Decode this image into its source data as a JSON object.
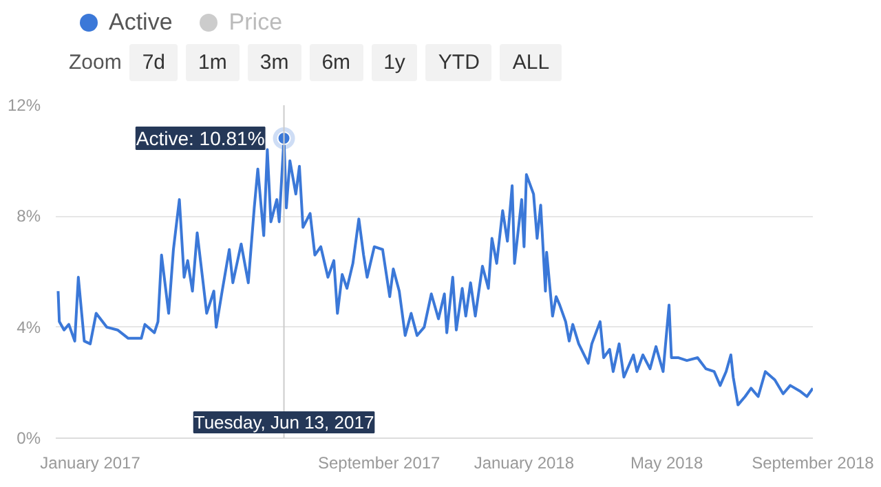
{
  "chart_data": {
    "type": "line",
    "x": [
      "2016-12-05",
      "2016-12-06",
      "2016-12-10",
      "2016-12-14",
      "2016-12-19",
      "2016-12-22",
      "2016-12-27",
      "2017-01-01",
      "2017-01-06",
      "2017-01-15",
      "2017-01-24",
      "2017-02-02",
      "2017-02-13",
      "2017-02-16",
      "2017-02-24",
      "2017-02-27",
      "2017-03-02",
      "2017-03-08",
      "2017-03-12",
      "2017-03-17",
      "2017-03-21",
      "2017-03-24",
      "2017-03-28",
      "2017-04-01",
      "2017-04-06",
      "2017-04-09",
      "2017-04-15",
      "2017-04-17",
      "2017-04-22",
      "2017-04-28",
      "2017-05-01",
      "2017-05-08",
      "2017-05-14",
      "2017-05-19",
      "2017-05-22",
      "2017-05-27",
      "2017-05-30",
      "2017-06-02",
      "2017-06-07",
      "2017-06-09",
      "2017-06-13",
      "2017-06-15",
      "2017-06-18",
      "2017-06-23",
      "2017-06-26",
      "2017-06-29",
      "2017-07-05",
      "2017-07-09",
      "2017-07-14",
      "2017-07-20",
      "2017-07-25",
      "2017-07-28",
      "2017-08-01",
      "2017-08-05",
      "2017-08-10",
      "2017-08-15",
      "2017-08-19",
      "2017-08-22",
      "2017-08-28",
      "2017-09-04",
      "2017-09-10",
      "2017-09-13",
      "2017-09-18",
      "2017-09-23",
      "2017-09-28",
      "2017-10-03",
      "2017-10-09",
      "2017-10-15",
      "2017-10-21",
      "2017-10-26",
      "2017-10-28",
      "2017-11-02",
      "2017-11-05",
      "2017-11-10",
      "2017-11-13",
      "2017-11-17",
      "2017-11-21",
      "2017-11-27",
      "2017-12-02",
      "2017-12-05",
      "2017-12-09",
      "2017-12-14",
      "2017-12-18",
      "2017-12-22",
      "2017-12-24",
      "2017-12-30",
      "2018-01-01",
      "2018-01-03",
      "2018-01-09",
      "2018-01-12",
      "2018-01-15",
      "2018-01-19",
      "2018-01-20",
      "2018-01-25",
      "2018-01-28",
      "2018-01-31",
      "2018-02-05",
      "2018-02-08",
      "2018-02-11",
      "2018-02-16",
      "2018-02-24",
      "2018-02-27",
      "2018-03-06",
      "2018-03-09",
      "2018-03-14",
      "2018-03-17",
      "2018-03-22",
      "2018-03-26",
      "2018-04-03",
      "2018-04-06",
      "2018-04-11",
      "2018-04-17",
      "2018-04-22",
      "2018-04-28",
      "2018-05-03",
      "2018-05-05",
      "2018-05-11",
      "2018-05-18",
      "2018-05-27",
      "2018-06-03",
      "2018-06-10",
      "2018-06-15",
      "2018-06-20",
      "2018-06-24",
      "2018-06-26",
      "2018-06-30",
      "2018-07-06",
      "2018-07-11",
      "2018-07-17",
      "2018-07-23",
      "2018-07-31",
      "2018-08-07",
      "2018-08-13",
      "2018-08-21",
      "2018-08-27",
      "2018-09-01"
    ],
    "series": [
      {
        "name": "Active",
        "color": "#3b78d8",
        "values": [
          5.3,
          4.2,
          3.9,
          4.1,
          3.5,
          5.8,
          3.5,
          3.4,
          4.5,
          4.0,
          3.9,
          3.6,
          3.6,
          4.1,
          3.8,
          4.2,
          6.6,
          4.5,
          6.8,
          8.6,
          5.8,
          6.4,
          5.3,
          7.4,
          5.6,
          4.5,
          5.3,
          4.0,
          5.3,
          6.8,
          5.6,
          7.0,
          5.6,
          8.3,
          9.7,
          7.3,
          10.4,
          7.8,
          8.6,
          7.8,
          10.81,
          8.3,
          10.0,
          8.8,
          9.8,
          7.6,
          8.1,
          6.6,
          6.9,
          5.8,
          6.4,
          4.5,
          5.9,
          5.4,
          6.3,
          7.9,
          6.6,
          5.8,
          6.9,
          6.8,
          5.1,
          6.1,
          5.3,
          3.7,
          4.5,
          3.7,
          4.0,
          5.2,
          4.3,
          5.2,
          3.8,
          5.8,
          3.9,
          5.4,
          4.4,
          5.6,
          4.4,
          6.2,
          5.4,
          7.2,
          6.3,
          8.2,
          7.1,
          9.1,
          6.3,
          8.6,
          6.9,
          9.5,
          8.8,
          7.2,
          8.4,
          5.3,
          6.7,
          4.4,
          5.1,
          4.8,
          4.2,
          3.5,
          4.1,
          3.4,
          2.7,
          3.4,
          4.2,
          2.9,
          3.2,
          2.4,
          3.4,
          2.2,
          3.0,
          2.4,
          3.0,
          2.5,
          3.3,
          2.4,
          4.8,
          2.9,
          2.9,
          2.8,
          2.9,
          2.5,
          2.4,
          1.9,
          2.4,
          3.0,
          2.2,
          1.2,
          1.5,
          1.8,
          1.5,
          2.4,
          2.1,
          1.6,
          1.9,
          1.7,
          1.5,
          1.8
        ]
      },
      {
        "name": "Price",
        "color": "#cccccc",
        "values": [
          null,
          null,
          null,
          null,
          null,
          null,
          null,
          null,
          null,
          null,
          null,
          null,
          null,
          null,
          null,
          null,
          null,
          null,
          null,
          null,
          null,
          null,
          null,
          null,
          null,
          null,
          null,
          null,
          null,
          null,
          null,
          null,
          null,
          null,
          null,
          null,
          null,
          null,
          null,
          null,
          null,
          null,
          null,
          null,
          null,
          null,
          null,
          null,
          null,
          null,
          null,
          null,
          null,
          null,
          null,
          null,
          null,
          null,
          null,
          null,
          null,
          null,
          null,
          null,
          null,
          null,
          null,
          null,
          null,
          null,
          null,
          null,
          null,
          null,
          null,
          null,
          null,
          null,
          null,
          null,
          null,
          null,
          null,
          null,
          null,
          null,
          null,
          null,
          null,
          null,
          null,
          null,
          null,
          null,
          null,
          null,
          null,
          null,
          null,
          null,
          null,
          null,
          null,
          null,
          null,
          null,
          null,
          null,
          null,
          null,
          null,
          null,
          null,
          null,
          null,
          null,
          null,
          null,
          null,
          null,
          null,
          null,
          null,
          null,
          null,
          null,
          null,
          null,
          null,
          null,
          null,
          null,
          null,
          null,
          null,
          null
        ]
      }
    ],
    "xlim": [
      "2016-12-03",
      "2018-09-01"
    ],
    "xticks": [
      {
        "value": "2017-01-01",
        "label": "January 2017"
      },
      {
        "value": "2017-09-01",
        "label": "September 2017"
      },
      {
        "value": "2018-01-01",
        "label": "January 2018"
      },
      {
        "value": "2018-05-01",
        "label": "May 2018"
      },
      {
        "value": "2018-09-01",
        "label": "September 2018"
      }
    ],
    "ylim": [
      0,
      12
    ],
    "yticks": [
      {
        "value": 0,
        "label": "0%"
      },
      {
        "value": 4,
        "label": "4%"
      },
      {
        "value": 8,
        "label": "8%"
      },
      {
        "value": 12,
        "label": "12%"
      }
    ],
    "grid": "y",
    "legend": "top left",
    "ref_lines": [
      {
        "axis": "x",
        "value": "2017-06-13",
        "label": "Tuesday, Jun 13, 2017",
        "color": "#cccccc"
      }
    ],
    "annotations": [
      "Zoom",
      "7d",
      "1m",
      "3m",
      "6m",
      "1y",
      "YTD",
      "ALL",
      {
        "text": "Active: 10.81%",
        "x": "2017-06-13",
        "y": 10.81
      }
    ]
  }
}
